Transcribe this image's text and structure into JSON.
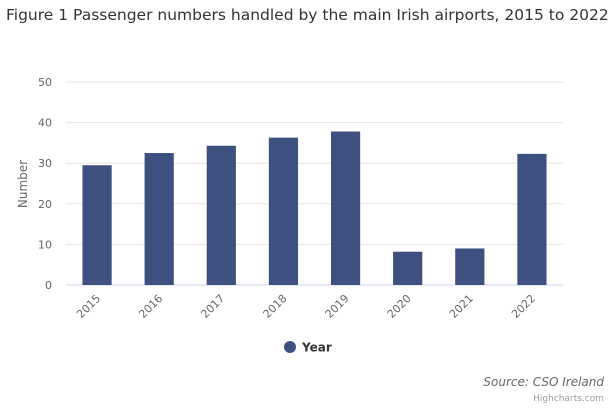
{
  "chart_data": {
    "type": "bar",
    "title": "Figure 1 Passenger numbers handled by the main Irish airports, 2015 to 2022",
    "xlabel": "",
    "ylabel": "Number",
    "ylim": [
      0,
      50
    ],
    "yticks": [
      0,
      10,
      20,
      30,
      40,
      50
    ],
    "grid": true,
    "legend_position": "bottom-center",
    "categories": [
      "2015",
      "2016",
      "2017",
      "2018",
      "2019",
      "2020",
      "2021",
      "2022"
    ],
    "series": [
      {
        "name": "Year",
        "color": "#3d5080",
        "values": [
          29.5,
          32.5,
          34.3,
          36.3,
          37.8,
          8.2,
          9.0,
          32.3
        ]
      }
    ]
  },
  "source": "Source: CSO Ireland",
  "credits": "Highcharts.com"
}
